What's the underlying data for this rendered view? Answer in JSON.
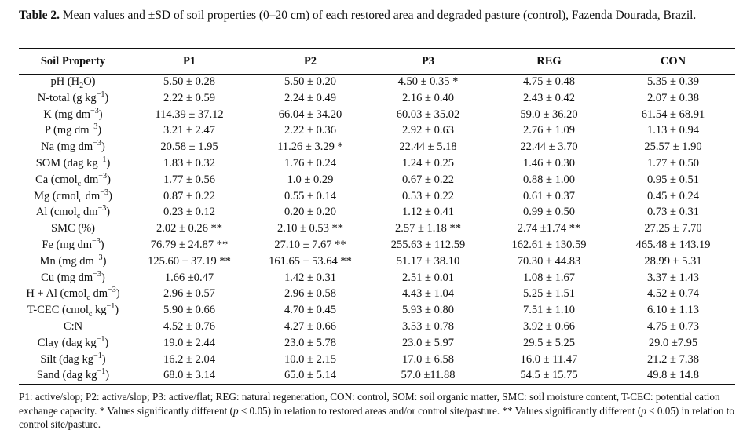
{
  "caption": {
    "label": "Table 2.",
    "text": " Mean values and ±SD of soil properties (0–20 cm) of each restored area and degraded pasture (control), Fazenda Dourada, Brazil."
  },
  "table": {
    "headers": [
      "Soil Property",
      "P1",
      "P2",
      "P3",
      "REG",
      "CON"
    ],
    "rows": [
      {
        "property": {
          "pre": "pH (H",
          "sub": "2",
          "post": "O)"
        },
        "values": [
          "5.50 ± 0.28",
          "5.50 ± 0.20",
          "4.50 ± 0.35 *",
          "4.75 ± 0.48",
          "5.35 ± 0.39"
        ]
      },
      {
        "property": {
          "pre": "N-total (g kg",
          "sup": "−1",
          "post": ")"
        },
        "values": [
          "2.22 ± 0.59",
          "2.24 ± 0.49",
          "2.16 ± 0.40",
          "2.43 ± 0.42",
          "2.07 ± 0.38"
        ]
      },
      {
        "property": {
          "pre": "K (mg dm",
          "sup": "−3",
          "post": ")"
        },
        "values": [
          "114.39 ± 37.12",
          "66.04 ± 34.20",
          "60.03 ± 35.02",
          "59.0 ± 36.20",
          "61.54 ± 68.91"
        ]
      },
      {
        "property": {
          "pre": "P (mg dm",
          "sup": "−3",
          "post": ")"
        },
        "values": [
          "3.21 ± 2.47",
          "2.22 ± 0.36",
          "2.92 ± 0.63",
          "2.76 ± 1.09",
          "1.13 ± 0.94"
        ]
      },
      {
        "property": {
          "pre": "Na (mg dm",
          "sup": "−3",
          "post": ")"
        },
        "values": [
          "20.58 ± 1.95",
          "11.26 ± 3.29 *",
          "22.44 ± 5.18",
          "22.44 ± 3.70",
          "25.57 ± 1.90"
        ]
      },
      {
        "property": {
          "pre": "SOM (dag kg",
          "sup": "−1",
          "post": ")"
        },
        "values": [
          "1.83 ± 0.32",
          "1.76 ± 0.24",
          "1.24 ± 0.25",
          "1.46 ± 0.30",
          "1.77 ± 0.50"
        ]
      },
      {
        "property": {
          "pre": "Ca (cmol",
          "sub": "c",
          "mid": " dm",
          "sup": "−3",
          "post": ")"
        },
        "values": [
          "1.77 ± 0.56",
          "1.0 ± 0.29",
          "0.67 ± 0.22",
          "0.88 ± 1.00",
          "0.95 ± 0.51"
        ]
      },
      {
        "property": {
          "pre": "Mg (cmol",
          "sub": "c",
          "mid": " dm",
          "sup": "−3",
          "post": ")"
        },
        "values": [
          "0.87 ± 0.22",
          "0.55 ± 0.14",
          "0.53 ± 0.22",
          "0.61 ± 0.37",
          "0.45 ± 0.24"
        ]
      },
      {
        "property": {
          "pre": "Al (cmol",
          "sub": "c",
          "mid": " dm",
          "sup": "−3",
          "post": ")"
        },
        "values": [
          "0.23 ± 0.12",
          "0.20 ± 0.20",
          "1.12 ± 0.41",
          "0.99 ± 0.50",
          "0.73 ± 0.31"
        ]
      },
      {
        "property": {
          "pre": "SMC (%)"
        },
        "values": [
          "2.02 ± 0.26 **",
          "2.10 ± 0.53 **",
          "2.57 ± 1.18 **",
          "2.74 ±1.74 **",
          "27.25 ± 7.70"
        ]
      },
      {
        "property": {
          "pre": "Fe (mg dm",
          "sup": "−3",
          "post": ")"
        },
        "values": [
          "76.79 ± 24.87 **",
          "27.10 ± 7.67 **",
          "255.63 ± 112.59",
          "162.61 ± 130.59",
          "465.48 ± 143.19"
        ]
      },
      {
        "property": {
          "pre": "Mn (mg dm",
          "sup": "−3",
          "post": ")"
        },
        "values": [
          "125.60 ± 37.19 **",
          "161.65 ± 53.64 **",
          "51.17 ± 38.10",
          "70.30 ± 44.83",
          "28.99 ± 5.31"
        ]
      },
      {
        "property": {
          "pre": "Cu (mg dm",
          "sup": "−3",
          "post": ")"
        },
        "values": [
          "1.66 ±0.47",
          "1.42 ± 0.31",
          "2.51 ± 0.01",
          "1.08 ± 1.67",
          "3.37 ± 1.43"
        ]
      },
      {
        "property": {
          "pre": "H + Al (cmol",
          "sub": "c",
          "mid": " dm",
          "sup": "−3",
          "post": ")"
        },
        "values": [
          "2.96 ± 0.57",
          "2.96 ± 0.58",
          "4.43 ± 1.04",
          "5.25 ± 1.51",
          "4.52 ± 0.74"
        ]
      },
      {
        "property": {
          "pre": "T-CEC (cmol",
          "sub": "c",
          "mid": " kg",
          "sup": "−1",
          "post": ")"
        },
        "values": [
          "5.90 ± 0.66",
          "4.70 ± 0.45",
          "5.93 ± 0.80",
          "7.51 ± 1.10",
          "6.10 ± 1.13"
        ]
      },
      {
        "property": {
          "pre": "C:N"
        },
        "values": [
          "4.52 ± 0.76",
          "4.27 ± 0.66",
          "3.53 ± 0.78",
          "3.92 ± 0.66",
          "4.75 ± 0.73"
        ]
      },
      {
        "property": {
          "pre": "Clay (dag kg",
          "sup": "−1",
          "post": ")"
        },
        "values": [
          "19.0 ± 2.44",
          "23.0 ± 5.78",
          "23.0 ± 5.97",
          "29.5 ± 5.25",
          "29.0 ±7.95"
        ]
      },
      {
        "property": {
          "pre": "Silt (dag kg",
          "sup": "−1",
          "post": ")"
        },
        "values": [
          "16.2 ± 2.04",
          "10.0 ± 2.15",
          "17.0 ± 6.58",
          "16.0 ± 11.47",
          "21.2 ± 7.38"
        ]
      },
      {
        "property": {
          "pre": "Sand (dag kg",
          "sup": "−1",
          "post": ")"
        },
        "values": [
          "68.0 ± 3.14",
          "65.0 ± 5.14",
          "57.0 ±11.88",
          "54.5 ± 15.75",
          "49.8 ± 14.8"
        ]
      }
    ]
  },
  "footnote": {
    "line1": "P1: active/slop; P2: active/slop; P3: active/flat; REG: natural regeneration, CON: control, SOM: soil organic matter, SMC: soil moisture content, T-CEC: potential cation exchange capacity. * Values significantly different (",
    "p1": "p",
    "mid1": " < 0.05) in relation to restored areas and/or control site/pasture. ** Values significantly different (",
    "p2": "p",
    "end": " < 0.05) in relation to control site/pasture."
  }
}
